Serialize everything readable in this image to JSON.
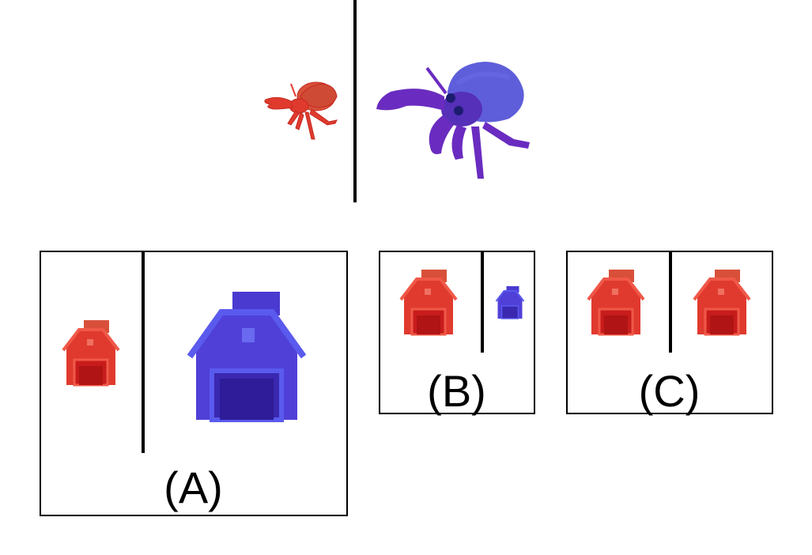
{
  "prompt": {
    "left_creature": {
      "icon": "hermit-crab-icon",
      "color": "#e03a2e"
    },
    "right_creature": {
      "icon": "hermit-crab-icon",
      "color": "#5a3fc8"
    }
  },
  "options": [
    {
      "label": "(A)",
      "left": {
        "icon": "barn-icon",
        "color": "#e03a2e"
      },
      "right": {
        "icon": "barn-icon",
        "color": "#4a3ad0"
      }
    },
    {
      "label": "(B)",
      "left": {
        "icon": "barn-icon",
        "color": "#e03a2e"
      },
      "right": {
        "icon": "barn-icon",
        "color": "#4a3ad0"
      }
    },
    {
      "label": "(C)",
      "left": {
        "icon": "barn-icon",
        "color": "#e03a2e"
      },
      "right": {
        "icon": "barn-icon",
        "color": "#e03a2e"
      }
    }
  ]
}
